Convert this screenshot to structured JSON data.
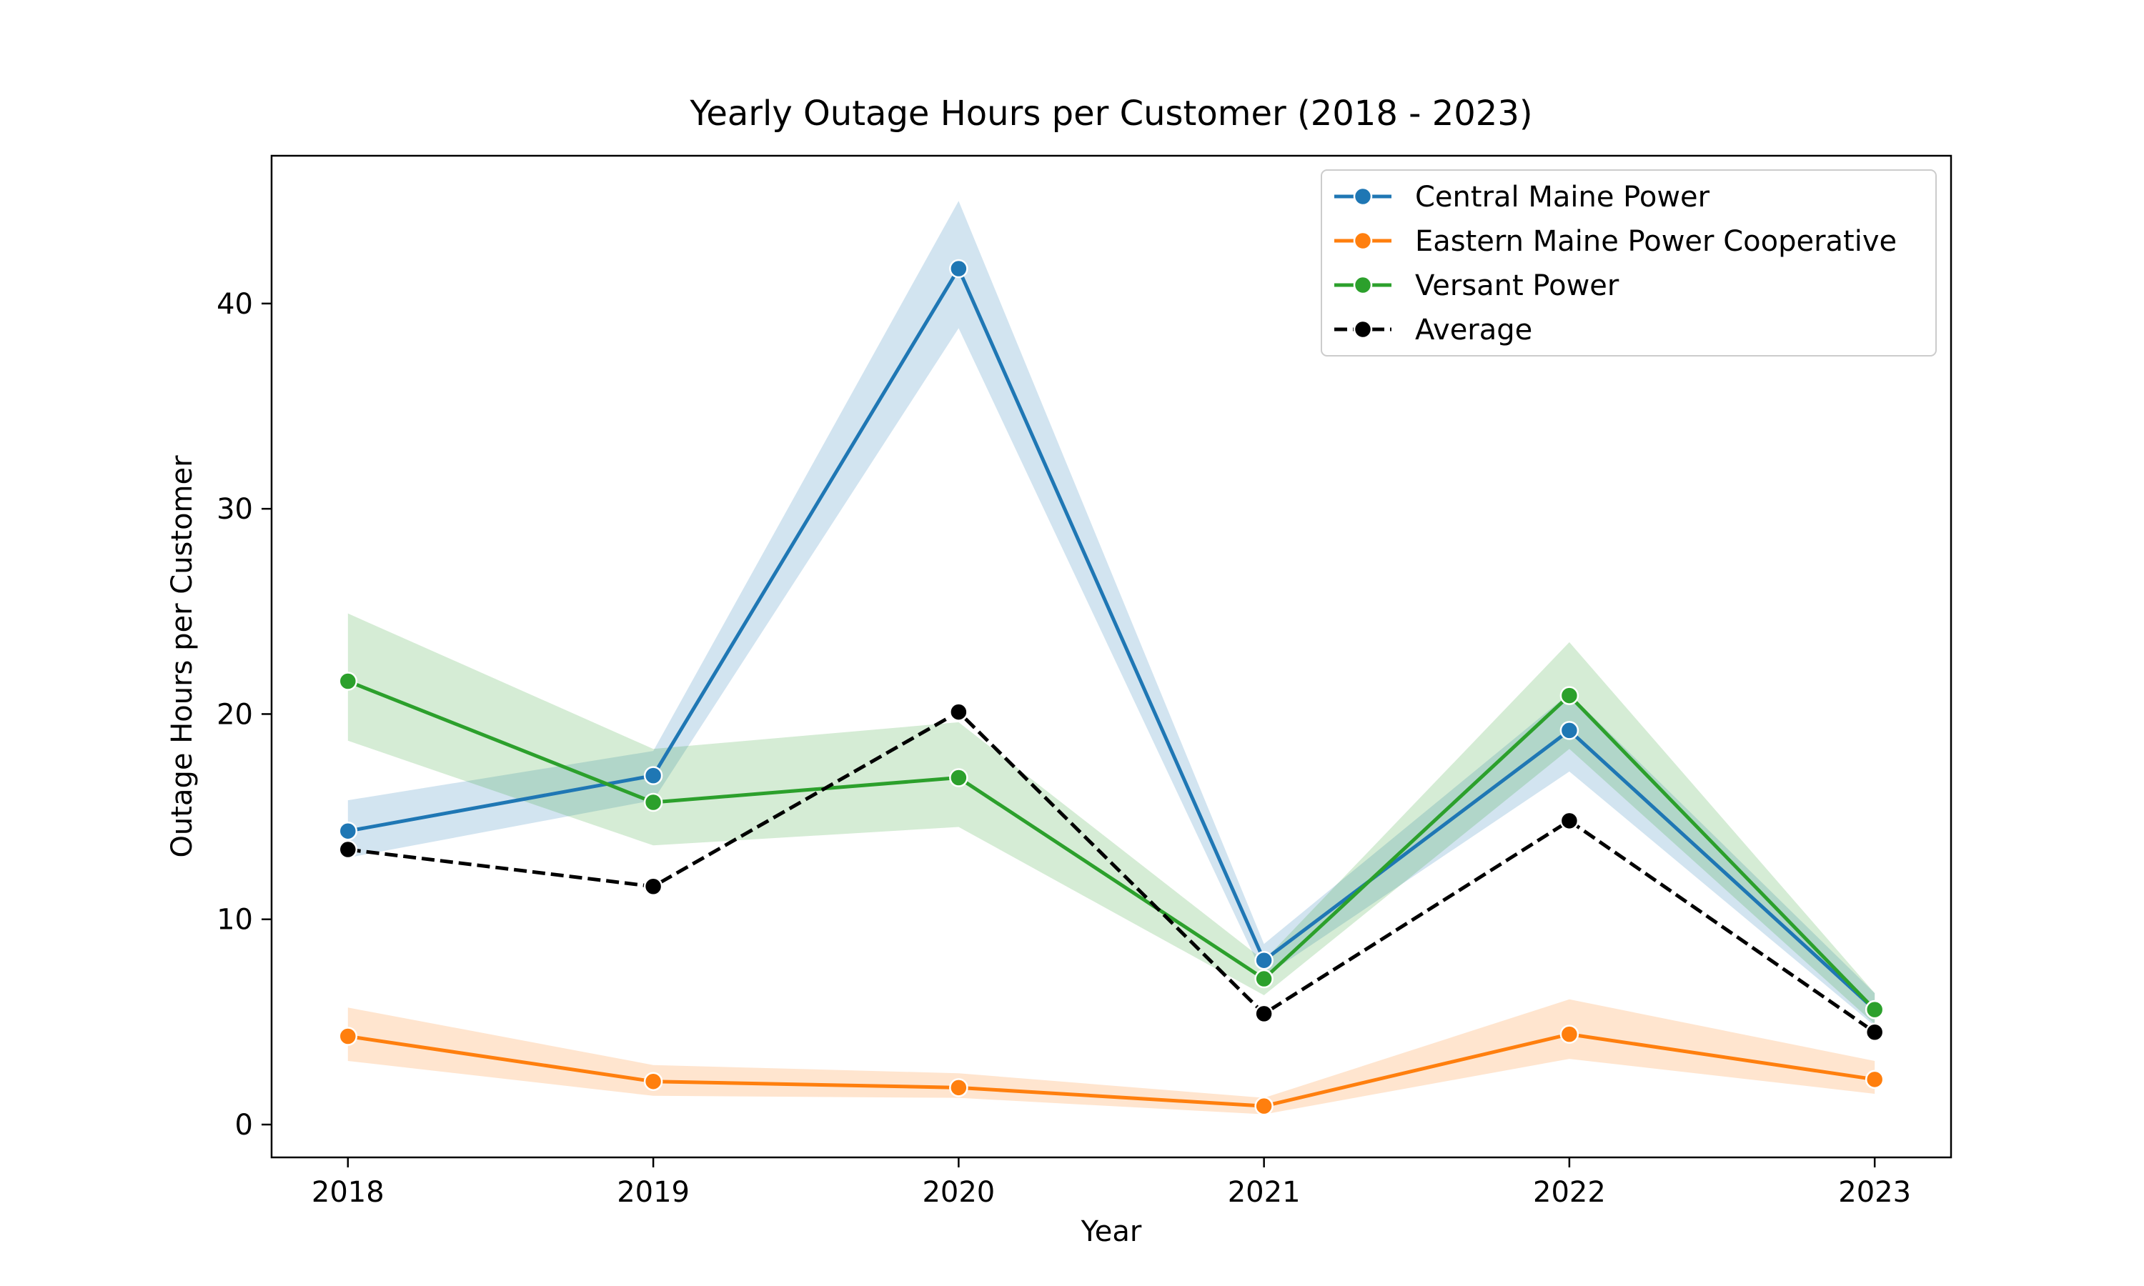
{
  "chart_data": {
    "type": "line",
    "title": "Yearly Outage Hours per Customer (2018 - 2023)",
    "xlabel": "Year",
    "ylabel": "Outage Hours per Customer",
    "x": [
      2018,
      2019,
      2020,
      2021,
      2022,
      2023
    ],
    "xlim": [
      2017.75,
      2023.25
    ],
    "ylim": [
      -1.6,
      47.2
    ],
    "yticks": [
      0,
      10,
      20,
      30,
      40
    ],
    "grid": false,
    "legend_position": "top-right",
    "series": [
      {
        "name": "Central Maine Power",
        "color": "#1f77b4",
        "style": "solid",
        "values": [
          14.3,
          17.0,
          41.7,
          8.0,
          19.2,
          5.6
        ],
        "band_lower": [
          13.0,
          15.8,
          38.8,
          7.2,
          17.2,
          4.8
        ],
        "band_upper": [
          15.8,
          18.2,
          45.0,
          8.8,
          21.0,
          6.4
        ]
      },
      {
        "name": "Eastern Maine Power Cooperative",
        "color": "#ff7f0e",
        "style": "solid",
        "values": [
          4.3,
          2.1,
          1.8,
          0.9,
          4.4,
          2.2
        ],
        "band_lower": [
          3.1,
          1.4,
          1.3,
          0.5,
          3.2,
          1.5
        ],
        "band_upper": [
          5.7,
          2.9,
          2.5,
          1.3,
          6.1,
          3.1
        ]
      },
      {
        "name": "Versant Power",
        "color": "#2ca02c",
        "style": "solid",
        "values": [
          21.6,
          15.7,
          16.9,
          7.1,
          20.9,
          5.6
        ],
        "band_lower": [
          18.7,
          13.6,
          14.5,
          6.3,
          18.3,
          4.9
        ],
        "band_upper": [
          24.9,
          18.3,
          19.6,
          8.0,
          23.5,
          6.4
        ]
      },
      {
        "name": "Average",
        "color": "#000000",
        "style": "dashed",
        "values": [
          13.4,
          11.6,
          20.1,
          5.4,
          14.8,
          4.5
        ]
      }
    ]
  }
}
